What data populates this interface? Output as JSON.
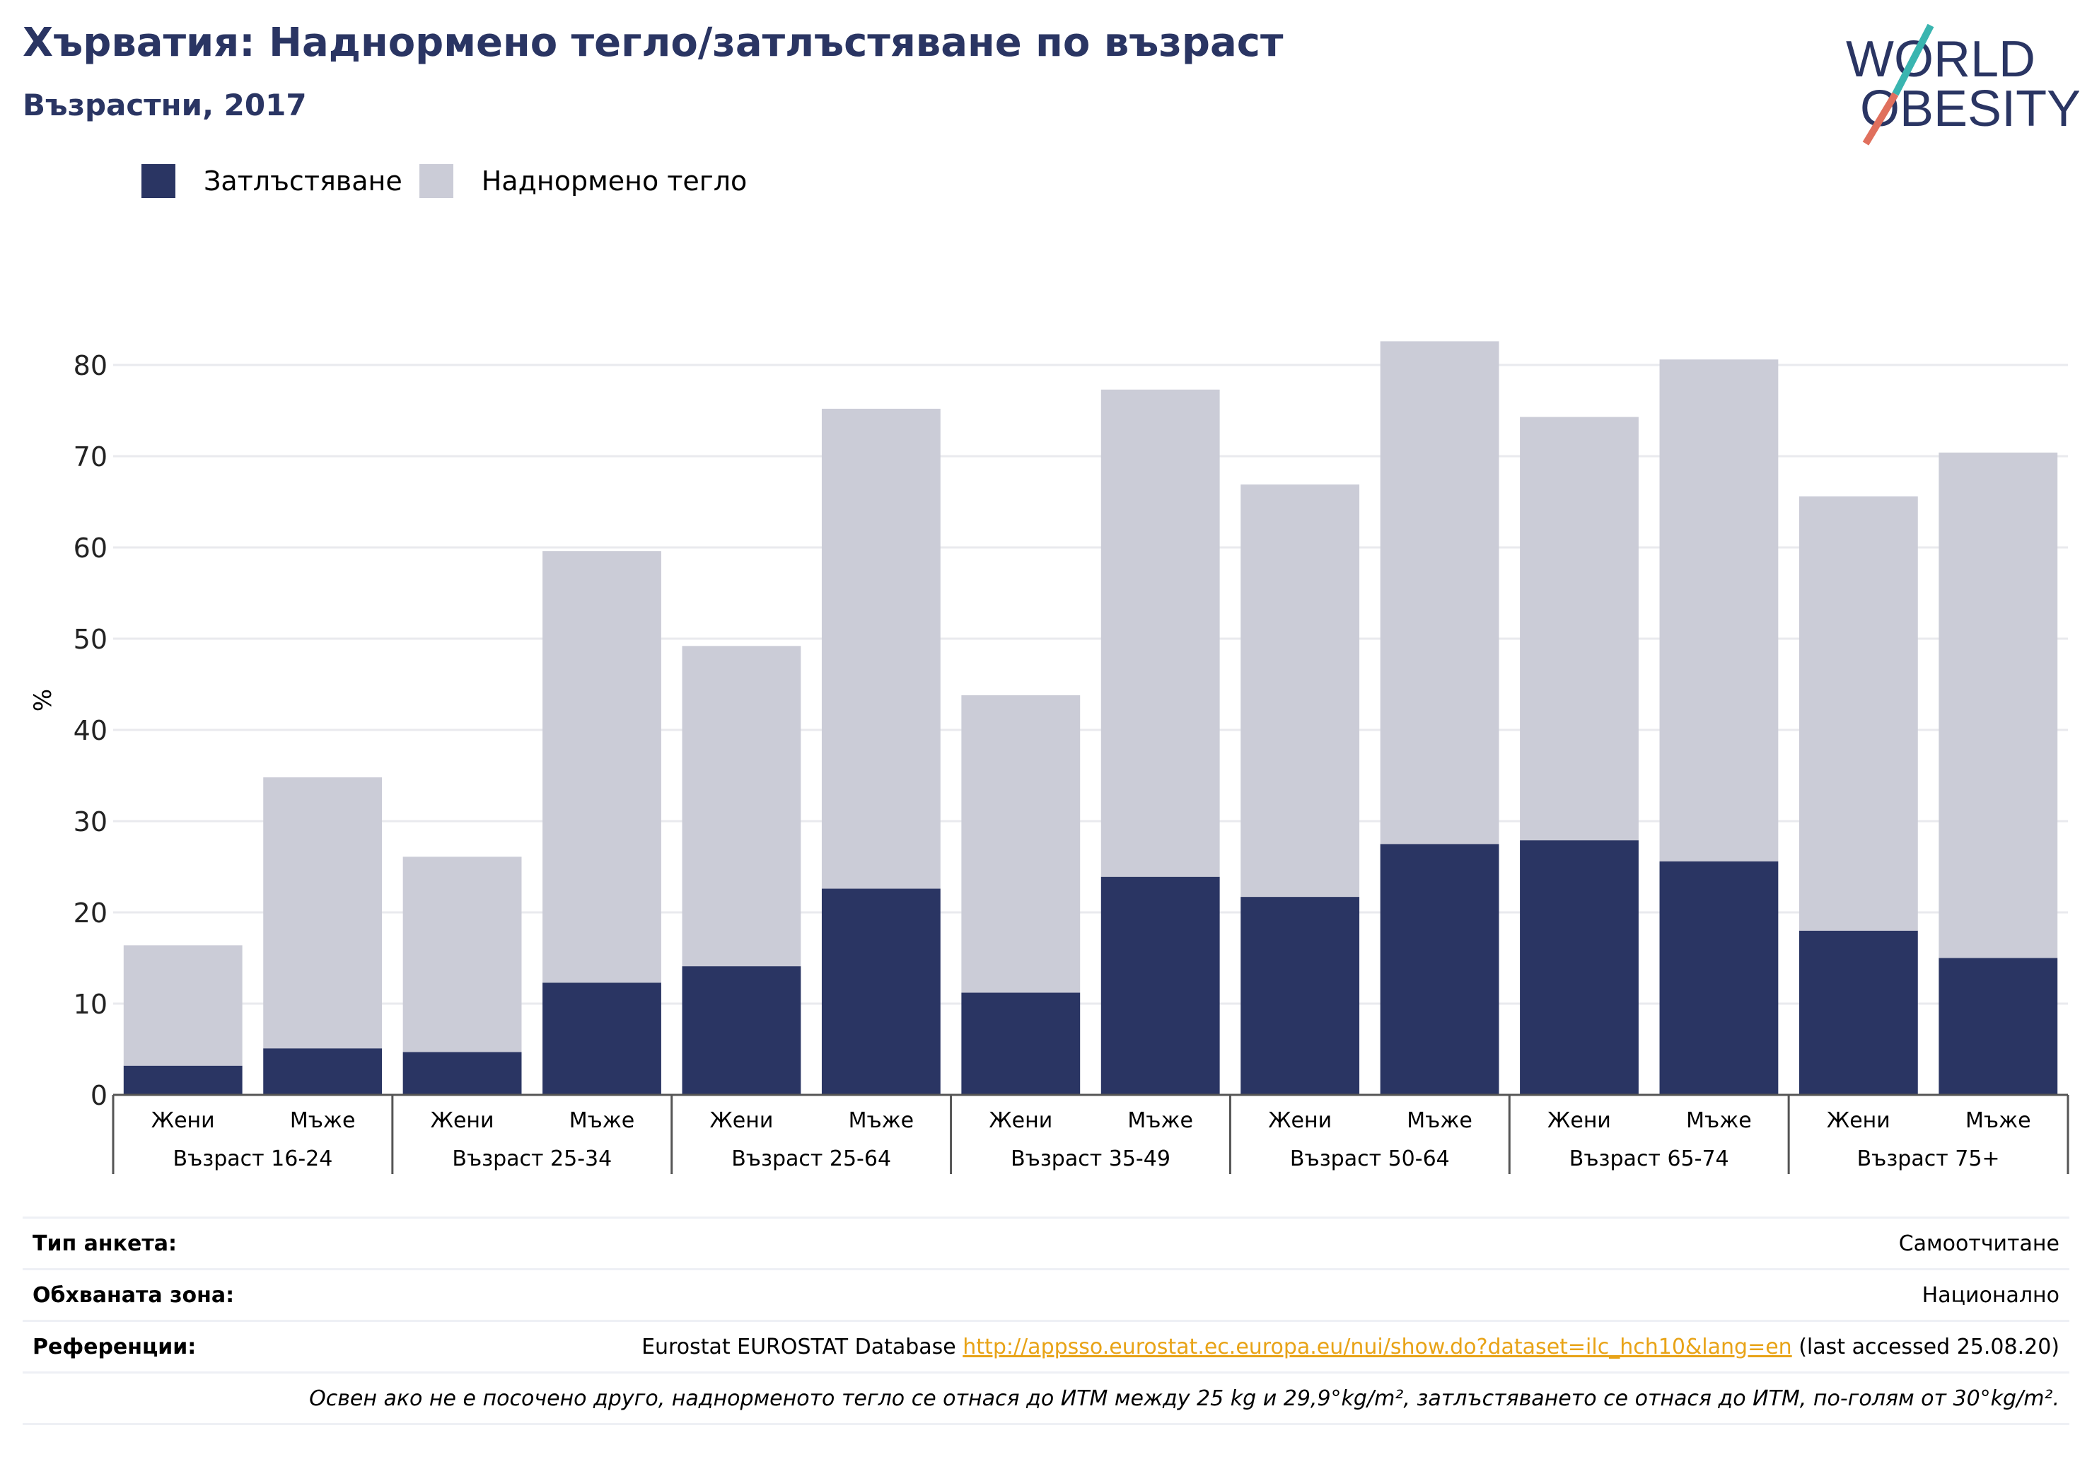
{
  "header": {
    "title": "Хърватия: Наднормено тегло/затлъстяване по възраст",
    "subtitle": "Възрастни, 2017"
  },
  "logo": {
    "line1": "WORLD",
    "line2": "OBESITY"
  },
  "colors": {
    "obesity": "#2a3563",
    "overweight": "#cbccd7",
    "accent_teal": "#3ab5b0",
    "accent_coral": "#e0705d"
  },
  "legend": [
    {
      "label": "Затлъстяване",
      "color": "#2a3563"
    },
    {
      "label": "Наднормено тегло",
      "color": "#cbccd7"
    }
  ],
  "chart_data": {
    "type": "bar",
    "stacked": true,
    "ylabel": "%",
    "ylim": [
      0,
      85
    ],
    "yticks": [
      0,
      10,
      20,
      30,
      40,
      50,
      60,
      70,
      80
    ],
    "grid": true,
    "legend_position": "top-left",
    "groups": [
      "Възраст 16-24",
      "Възраст 25-34",
      "Възраст 25-64",
      "Възраст 35-49",
      "Възраст 50-64",
      "Възраст 65-74",
      "Възраст 75+"
    ],
    "subcategories": [
      "Жени",
      "Мъже"
    ],
    "series": [
      {
        "name": "Затлъстяване",
        "values": [
          3.2,
          5.1,
          4.7,
          12.3,
          14.1,
          22.6,
          11.2,
          23.9,
          21.7,
          27.5,
          27.9,
          25.6,
          18.0,
          15.0
        ]
      },
      {
        "name": "Наднормено тегло",
        "values": [
          13.2,
          29.7,
          21.4,
          47.3,
          35.1,
          52.6,
          32.6,
          53.4,
          45.2,
          55.1,
          46.4,
          55.0,
          47.6,
          55.4
        ]
      }
    ]
  },
  "footer": {
    "survey_label": "Тип анкета:",
    "survey_value": "Самоотчитане",
    "area_label": "Обхваната зона:",
    "area_value": "Национално",
    "refs_label": "Референции:",
    "refs_prefix": "Eurostat EUROSTAT Database ",
    "refs_link": "http://appsso.eurostat.ec.europa.eu/nui/show.do?dataset=ilc_hch10&lang=en",
    "refs_suffix": " (last accessed 25.08.20)",
    "note": "Освен ако не е посочено друго, наднорменото тегло се отнася до ИТМ между 25 kg и 29,9°kg/m², затлъстяването се отнася до ИТМ, по-голям от 30°kg/m²."
  }
}
